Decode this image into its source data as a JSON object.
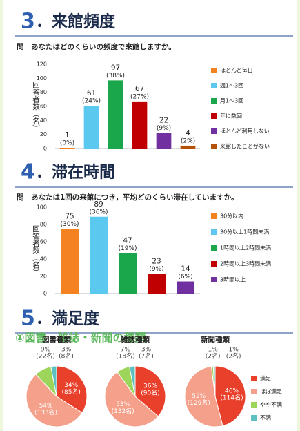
{
  "sections": [
    {
      "number": "3",
      "title": "．来館頻度",
      "question": "問　あなたはどのくらいの頻度で来館しますか。",
      "chart_data": {
        "type": "bar",
        "y_label": "回答者数（名）",
        "categories": [
          "ほとんど毎日",
          "週1～3回",
          "月1～3回",
          "年に数回",
          "ほとんど利用しない",
          "来館したことがない"
        ],
        "values": [
          1,
          61,
          97,
          67,
          22,
          4
        ],
        "percent_labels": [
          "(0%)",
          "(24%)",
          "(38%)",
          "(27%)",
          "(9%)",
          "(2%)"
        ],
        "colors": [
          "#f58220",
          "#5bc8f0",
          "#1aa64a",
          "#c00000",
          "#7030a0",
          "#b5520a"
        ],
        "ylim": [
          0,
          120
        ],
        "yticks": [
          0,
          20,
          40,
          60,
          80,
          100,
          120
        ],
        "legend": "right"
      }
    },
    {
      "number": "4",
      "title": "．滞在時間",
      "question": "問　あなたは1回の来館につき，平均どのくらい滞在していますか。",
      "chart_data": {
        "type": "bar",
        "y_label": "回答者数（名）",
        "categories": [
          "30分以内",
          "30分以上1時間未満",
          "1時間以上2時間未満",
          "2時間以上3時間未満",
          "3時間以上"
        ],
        "values": [
          75,
          89,
          47,
          23,
          14
        ],
        "percent_labels": [
          "(30%)",
          "(36%)",
          "(19%)",
          "(9%)",
          "(6%)"
        ],
        "colors": [
          "#f58220",
          "#5bc8f0",
          "#1aa64a",
          "#c00000",
          "#7030a0"
        ],
        "ylim": [
          0,
          100
        ],
        "yticks": [
          0,
          20,
          40,
          60,
          80,
          100
        ],
        "legend": "right"
      }
    },
    {
      "number": "5",
      "title": "．満足度",
      "subtitle": "①図書・雑誌・新聞の種類",
      "legend": {
        "labels": [
          "満足",
          "ほぼ満足",
          "やや不満",
          "不満"
        ],
        "colors": [
          "#e8402a",
          "#f4a08a",
          "#9dd45a",
          "#5cc0c0"
        ]
      },
      "chart_data": [
        {
          "type": "pie",
          "title": "図書種類",
          "values": [
            34,
            54,
            9,
            3
          ],
          "value_labels": [
            "34%",
            "54%",
            "9%",
            "3%"
          ],
          "count_labels": [
            "(85名)",
            "(133名)",
            "(22名)",
            "(8名)"
          ]
        },
        {
          "type": "pie",
          "title": "雑誌種類",
          "values": [
            36,
            53,
            7,
            3
          ],
          "value_labels": [
            "36%",
            "53%",
            "7%",
            "3%"
          ],
          "count_labels": [
            "(90名)",
            "(132名)",
            "(18名)",
            "(7名)"
          ]
        },
        {
          "type": "pie",
          "title": "新聞種類",
          "values": [
            46,
            52,
            1,
            1
          ],
          "value_labels": [
            "46%",
            "52%",
            "1%",
            "1%"
          ],
          "count_labels": [
            "(114名)",
            "(129名)",
            "(2名)",
            "(2名)"
          ]
        }
      ]
    }
  ]
}
